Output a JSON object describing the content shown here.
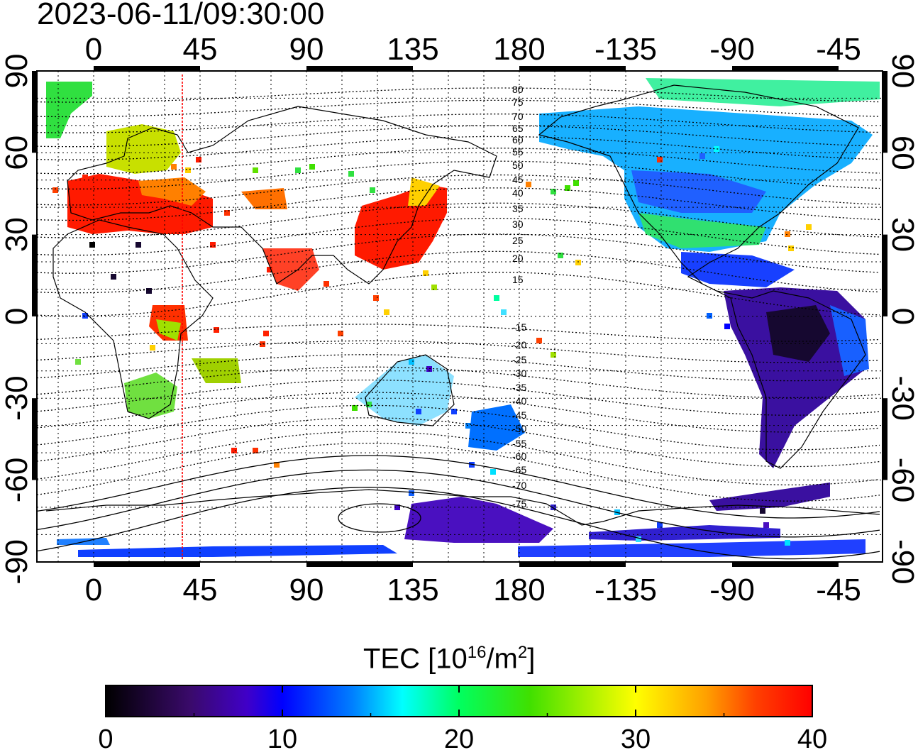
{
  "title": "2023-06-11/09:30:00",
  "map": {
    "x_tick_labels": [
      "0",
      "45",
      "90",
      "135",
      "180",
      "-135",
      "-90",
      "-45"
    ],
    "y_tick_labels": [
      "90",
      "60",
      "30",
      "0",
      "-30",
      "-60",
      "-90"
    ],
    "contour_labels_north": [
      "80",
      "75",
      "70",
      "65",
      "60",
      "55",
      "50",
      "45",
      "40",
      "35",
      "30",
      "25",
      "20",
      "15"
    ],
    "contour_labels_south": [
      "-15",
      "-20",
      "-25",
      "-30",
      "-35",
      "-40",
      "-45",
      "-50",
      "-55",
      "-60",
      "-65",
      "-70",
      "-75"
    ],
    "terminator_longitude": 38,
    "terminator_color": "#ff0000",
    "grid": true
  },
  "colorbar": {
    "label_main": "TEC  [10",
    "label_exp": "16",
    "label_mid": "/m",
    "label_exp2": "2",
    "label_end": "]",
    "ticks": [
      "0",
      "10",
      "20",
      "30",
      "40"
    ],
    "range": [
      0,
      40
    ],
    "colormap": [
      "#000000",
      "#3a0a6b",
      "#4000c8",
      "#0000ff",
      "#0080ff",
      "#00ffff",
      "#00ff60",
      "#40e000",
      "#ffff00",
      "#ffa000",
      "#ff4000",
      "#ff0000"
    ]
  }
}
